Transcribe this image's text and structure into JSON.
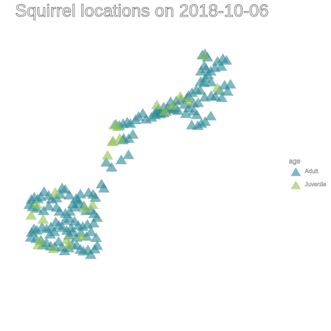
{
  "chart_data": {
    "type": "scatter",
    "title": "Squirrel locations on 2018-10-06",
    "xlabel": "",
    "ylabel": "",
    "axes_visible": false,
    "grid": false,
    "marker": "triangle",
    "legend": {
      "title": "age",
      "placement": "right"
    },
    "x_range": [
      0,
      100
    ],
    "y_range": [
      0,
      100
    ],
    "series": [
      {
        "name": "Adult",
        "color": "#2e8b97",
        "points": [
          [
            76.0,
            97.4
          ],
          [
            78.2,
            96.6
          ],
          [
            77.1,
            97.8
          ],
          [
            82.5,
            95.0
          ],
          [
            84.8,
            96.0
          ],
          [
            86.3,
            95.4
          ],
          [
            84.1,
            93.1
          ],
          [
            81.4,
            92.6
          ],
          [
            76.8,
            93.4
          ],
          [
            75.4,
            91.3
          ],
          [
            77.6,
            92.2
          ],
          [
            79.6,
            91.3
          ],
          [
            78.5,
            89.9
          ],
          [
            77.2,
            88.6
          ],
          [
            75.3,
            87.4
          ],
          [
            76.7,
            86.9
          ],
          [
            79.7,
            87.2
          ],
          [
            73.4,
            84.3
          ],
          [
            75.1,
            84.1
          ],
          [
            77.0,
            81.5
          ],
          [
            79.8,
            82.0
          ],
          [
            81.5,
            81.8
          ],
          [
            84.3,
            81.3
          ],
          [
            86.8,
            83.7
          ],
          [
            88.0,
            86.4
          ],
          [
            85.5,
            86.0
          ],
          [
            83.4,
            84.1
          ],
          [
            71.6,
            83.2
          ],
          [
            70.1,
            82.1
          ],
          [
            69.5,
            81.3
          ],
          [
            72.3,
            79.2
          ],
          [
            74.2,
            79.4
          ],
          [
            68.5,
            78.8
          ],
          [
            66.9,
            80.6
          ],
          [
            64.9,
            80.1
          ],
          [
            62.5,
            79.8
          ],
          [
            59.5,
            77.8
          ],
          [
            57.2,
            76.9
          ],
          [
            58.1,
            75.2
          ],
          [
            55.8,
            74.8
          ],
          [
            54.3,
            73.9
          ],
          [
            52.0,
            73.2
          ],
          [
            50.6,
            75.4
          ],
          [
            48.8,
            74.2
          ],
          [
            47.5,
            73.0
          ],
          [
            45.3,
            71.6
          ],
          [
            44.0,
            72.1
          ],
          [
            42.2,
            71.5
          ],
          [
            40.6,
            70.8
          ],
          [
            39.1,
            71.3
          ],
          [
            79.6,
            74.4
          ],
          [
            77.2,
            72.3
          ],
          [
            75.6,
            71.6
          ],
          [
            74.1,
            70.8
          ],
          [
            71.5,
            71.0
          ],
          [
            56.1,
            76.0
          ],
          [
            57.1,
            75.6
          ],
          [
            58.2,
            75.9
          ],
          [
            59.5,
            75.6
          ],
          [
            60.4,
            76.1
          ],
          [
            61.1,
            77.4
          ],
          [
            62.1,
            77.2
          ],
          [
            63.8,
            76.8
          ],
          [
            64.4,
            77.6
          ],
          [
            65.6,
            76.5
          ],
          [
            69.0,
            75.3
          ],
          [
            70.2,
            77.4
          ],
          [
            72.3,
            76.3
          ],
          [
            73.6,
            74.9
          ],
          [
            42.1,
            65.4
          ],
          [
            44.6,
            65.9
          ],
          [
            46.4,
            67.5
          ],
          [
            42.5,
            66.0
          ],
          [
            44.5,
            59.8
          ],
          [
            41.4,
            57.9
          ],
          [
            37.3,
            55.1
          ],
          [
            35.0,
            57.0
          ],
          [
            34.0,
            47.2
          ],
          [
            33.0,
            48.8
          ],
          [
            30.4,
            43.7
          ],
          [
            29.4,
            44.9
          ],
          [
            27.5,
            45.6
          ],
          [
            24.0,
            45.0
          ],
          [
            23.0,
            42.8
          ],
          [
            22.2,
            43.4
          ],
          [
            20.8,
            41.3
          ],
          [
            19.3,
            44.6
          ],
          [
            17.5,
            46.8
          ],
          [
            16.2,
            47.3
          ],
          [
            15.5,
            44.9
          ],
          [
            13.8,
            43.5
          ],
          [
            11.7,
            43.1
          ],
          [
            10.5,
            44.5
          ],
          [
            8.5,
            45.9
          ],
          [
            7.1,
            44.0
          ],
          [
            5.8,
            43.2
          ],
          [
            4.3,
            43.8
          ],
          [
            3.1,
            43.0
          ],
          [
            2.2,
            41.0
          ],
          [
            3.6,
            40.2
          ],
          [
            5.4,
            39.6
          ],
          [
            8.3,
            38.7
          ],
          [
            10.5,
            40.5
          ],
          [
            13.8,
            40.0
          ],
          [
            15.1,
            38.5
          ],
          [
            17.6,
            37.7
          ],
          [
            19.5,
            38.5
          ],
          [
            21.6,
            40.1
          ],
          [
            23.2,
            41.4
          ],
          [
            25.4,
            40.6
          ],
          [
            26.4,
            38.7
          ],
          [
            28.5,
            39.1
          ],
          [
            29.8,
            37.6
          ],
          [
            31.1,
            36.2
          ],
          [
            29.7,
            34.1
          ],
          [
            27.0,
            33.6
          ],
          [
            25.0,
            32.8
          ],
          [
            23.1,
            33.2
          ],
          [
            21.5,
            34.8
          ],
          [
            19.3,
            35.9
          ],
          [
            17.4,
            35.1
          ],
          [
            13.5,
            34.5
          ],
          [
            11.4,
            32.6
          ],
          [
            9.6,
            31.9
          ],
          [
            7.6,
            32.5
          ],
          [
            5.4,
            31.4
          ],
          [
            4.2,
            31.9
          ],
          [
            3.2,
            30.6
          ],
          [
            2.8,
            28.7
          ],
          [
            5.1,
            28.2
          ],
          [
            7.2,
            27.6
          ],
          [
            8.0,
            25.8
          ],
          [
            9.5,
            26.7
          ],
          [
            11.3,
            25.4
          ],
          [
            13.0,
            25.2
          ],
          [
            14.7,
            27.1
          ],
          [
            16.0,
            25.0
          ],
          [
            17.3,
            23.6
          ],
          [
            19.0,
            24.7
          ],
          [
            20.5,
            26.0
          ],
          [
            22.4,
            25.7
          ],
          [
            24.0,
            24.2
          ],
          [
            25.3,
            23.5
          ],
          [
            27.2,
            24.0
          ],
          [
            28.4,
            22.2
          ],
          [
            30.1,
            24.3
          ],
          [
            31.2,
            25.6
          ],
          [
            30.7,
            28.6
          ],
          [
            28.5,
            30.8
          ],
          [
            26.6,
            29.1
          ],
          [
            24.2,
            30.5
          ],
          [
            22.4,
            28.7
          ],
          [
            20.6,
            30.6
          ],
          [
            19.1,
            29.5
          ],
          [
            20.1,
            32.2
          ],
          [
            18.2,
            31.3
          ],
          [
            16.3,
            32.4
          ],
          [
            14.8,
            33.2
          ],
          [
            12.9,
            30.8
          ],
          [
            11.1,
            29.9
          ]
        ]
      },
      {
        "name": "Juvenile",
        "color": "#94c256",
        "points": [
          [
            76.8,
            97.3
          ],
          [
            82.4,
            85.0
          ],
          [
            70.2,
            80.4
          ],
          [
            66.6,
            81.8
          ],
          [
            63.1,
            78.5
          ],
          [
            60.0,
            76.2
          ],
          [
            56.6,
            78.6
          ],
          [
            39.9,
            70.4
          ],
          [
            38.4,
            71.0
          ],
          [
            40.8,
            66.0
          ],
          [
            37.6,
            64.7
          ],
          [
            38.0,
            65.0
          ],
          [
            35.6,
            59.6
          ],
          [
            13.3,
            45.6
          ],
          [
            29.3,
            41.0
          ],
          [
            25.8,
            39.6
          ],
          [
            24.4,
            29.2
          ],
          [
            6.9,
            27.5
          ],
          [
            8.1,
            35.5
          ],
          [
            5.3,
            41.2
          ],
          [
            3.0,
            37.0
          ],
          [
            18.2,
            27.8
          ],
          [
            19.0,
            26.0
          ],
          [
            12.5,
            24.4
          ],
          [
            6.0,
            25.8
          ]
        ]
      }
    ]
  }
}
